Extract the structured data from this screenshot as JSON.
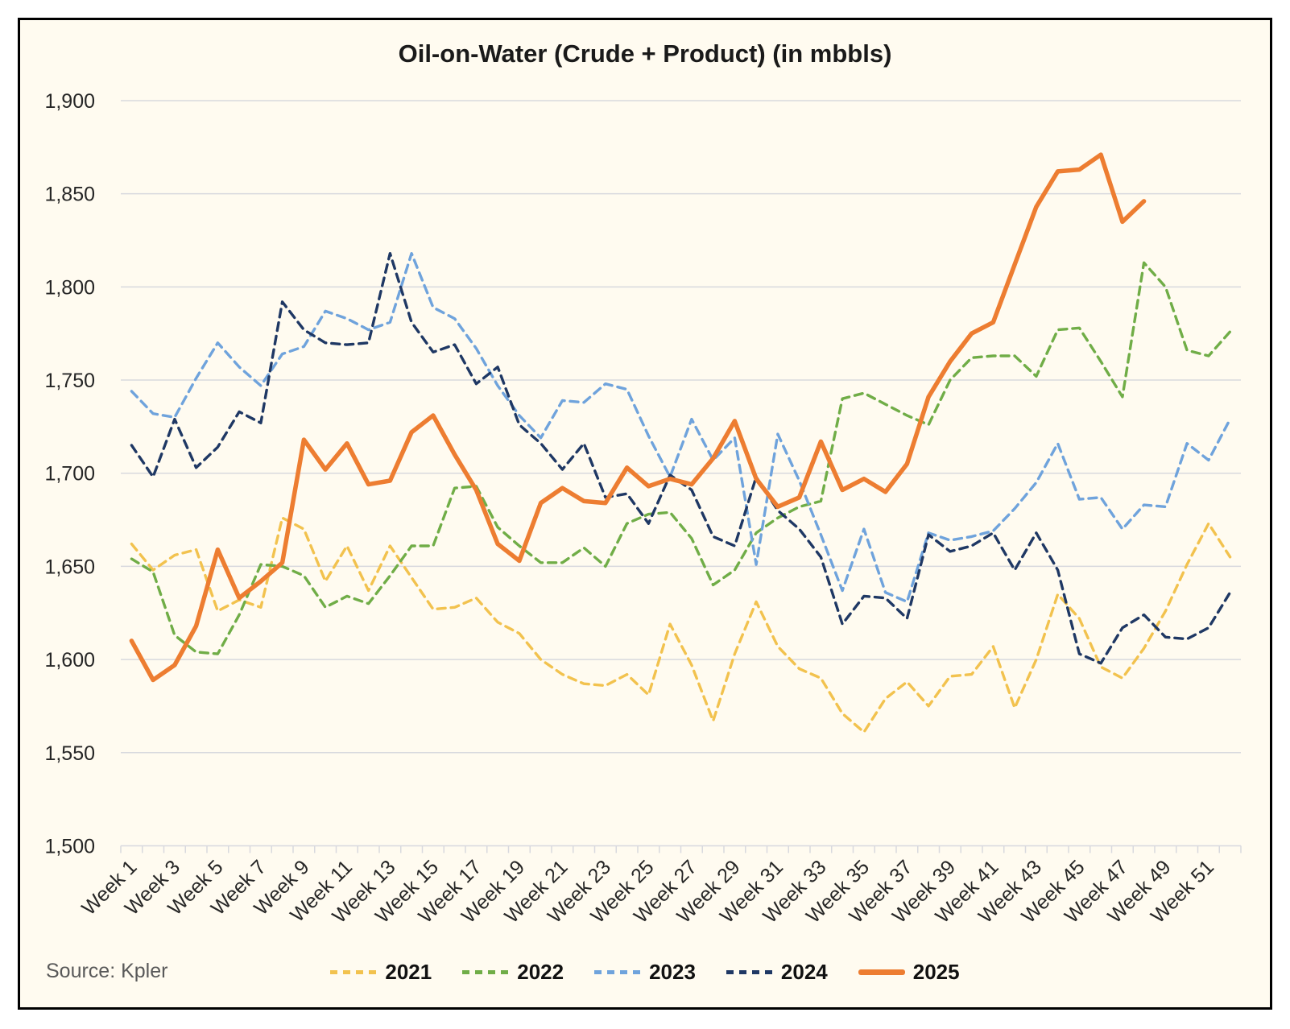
{
  "title": "Oil-on-Water (Crude + Product) (in mbbls)",
  "source": "Source: Kpler",
  "colors": {
    "background": "#FFFBF0",
    "frame_border": "#000000",
    "gridline": "#D8D9DE",
    "axis_text": "#262626",
    "title_text": "#1a1a1a",
    "source_text": "#595959"
  },
  "chart_data": {
    "type": "line",
    "title": "Oil-on-Water (Crude + Product) (in mbbls)",
    "xlabel": "",
    "ylabel": "",
    "ylim": [
      1500,
      1900
    ],
    "y_tick_step": 50,
    "y_tick_labels": [
      "1,500",
      "1,550",
      "1,600",
      "1,650",
      "1,700",
      "1,750",
      "1,800",
      "1,850",
      "1,900"
    ],
    "x_categories_count": 52,
    "x_tick_labels": [
      "Week 1",
      "Week 3",
      "Week 5",
      "Week 7",
      "Week 9",
      "Week 11",
      "Week 13",
      "Week 15",
      "Week 17",
      "Week 19",
      "Week 21",
      "Week 23",
      "Week 25",
      "Week 27",
      "Week 29",
      "Week 31",
      "Week 33",
      "Week 35",
      "Week 37",
      "Week 39",
      "Week 41",
      "Week 43",
      "Week 45",
      "Week 47",
      "Week 49",
      "Week 51"
    ],
    "grid": true,
    "legend_position": "bottom",
    "series": [
      {
        "name": "2021",
        "color": "#F2C24E",
        "style": "dashed",
        "values": [
          1662,
          1648,
          1656,
          1659,
          1626,
          1632,
          1628,
          1676,
          1670,
          1642,
          1661,
          1637,
          1661,
          1644,
          1627,
          1628,
          1633,
          1620,
          1614,
          1600,
          1592,
          1587,
          1586,
          1592,
          1581,
          1619,
          1597,
          1567,
          1603,
          1631,
          1607,
          1595,
          1590,
          1571,
          1561,
          1579,
          1588,
          1575,
          1591,
          1592,
          1607,
          1574,
          1600,
          1635,
          1622,
          1596,
          1590,
          1606,
          1626,
          1651,
          1673,
          1655
        ]
      },
      {
        "name": "2022",
        "color": "#70AD47",
        "style": "dashed",
        "values": [
          1654,
          1647,
          1613,
          1604,
          1603,
          1624,
          1651,
          1650,
          1645,
          1628,
          1634,
          1630,
          1645,
          1661,
          1661,
          1692,
          1693,
          1671,
          1661,
          1652,
          1652,
          1660,
          1650,
          1673,
          1678,
          1679,
          1665,
          1640,
          1648,
          1668,
          1676,
          1682,
          1685,
          1740,
          1743,
          1737,
          1731,
          1726,
          1750,
          1762,
          1763,
          1763,
          1752,
          1777,
          1778,
          1760,
          1741,
          1813,
          1800,
          1766,
          1763,
          1776
        ]
      },
      {
        "name": "2023",
        "color": "#6FA3DC",
        "style": "dashed",
        "values": [
          1744,
          1732,
          1730,
          1751,
          1770,
          1757,
          1747,
          1764,
          1768,
          1787,
          1783,
          1777,
          1781,
          1818,
          1789,
          1783,
          1767,
          1747,
          1731,
          1719,
          1739,
          1738,
          1748,
          1745,
          1720,
          1698,
          1729,
          1707,
          1719,
          1651,
          1721,
          1696,
          1667,
          1637,
          1670,
          1636,
          1631,
          1668,
          1664,
          1666,
          1669,
          1681,
          1695,
          1716,
          1686,
          1687,
          1670,
          1683,
          1682,
          1716,
          1707,
          1729
        ]
      },
      {
        "name": "2024",
        "color": "#1F3864",
        "style": "dashed",
        "values": [
          1715,
          1698,
          1729,
          1703,
          1714,
          1733,
          1727,
          1792,
          1777,
          1770,
          1769,
          1770,
          1818,
          1781,
          1765,
          1769,
          1748,
          1757,
          1726,
          1716,
          1702,
          1716,
          1687,
          1689,
          1673,
          1699,
          1691,
          1666,
          1661,
          1698,
          1680,
          1670,
          1655,
          1619,
          1634,
          1633,
          1622,
          1667,
          1658,
          1661,
          1668,
          1648,
          1668,
          1648,
          1603,
          1598,
          1617,
          1624,
          1612,
          1611,
          1617,
          1636
        ]
      },
      {
        "name": "2025",
        "color": "#ED7D31",
        "style": "solid",
        "values": [
          1610,
          1589,
          1597,
          1618,
          1659,
          1633,
          1642,
          1652,
          1718,
          1702,
          1716,
          1694,
          1696,
          1722,
          1731,
          1710,
          1691,
          1662,
          1653,
          1684,
          1692,
          1685,
          1684,
          1703,
          1693,
          1697,
          1694,
          1708,
          1728,
          1697,
          1682,
          1687,
          1717,
          1691,
          1697,
          1690,
          1705,
          1741,
          1760,
          1775,
          1781,
          1812,
          1843,
          1862,
          1863,
          1871,
          1835,
          1846
        ]
      }
    ]
  }
}
